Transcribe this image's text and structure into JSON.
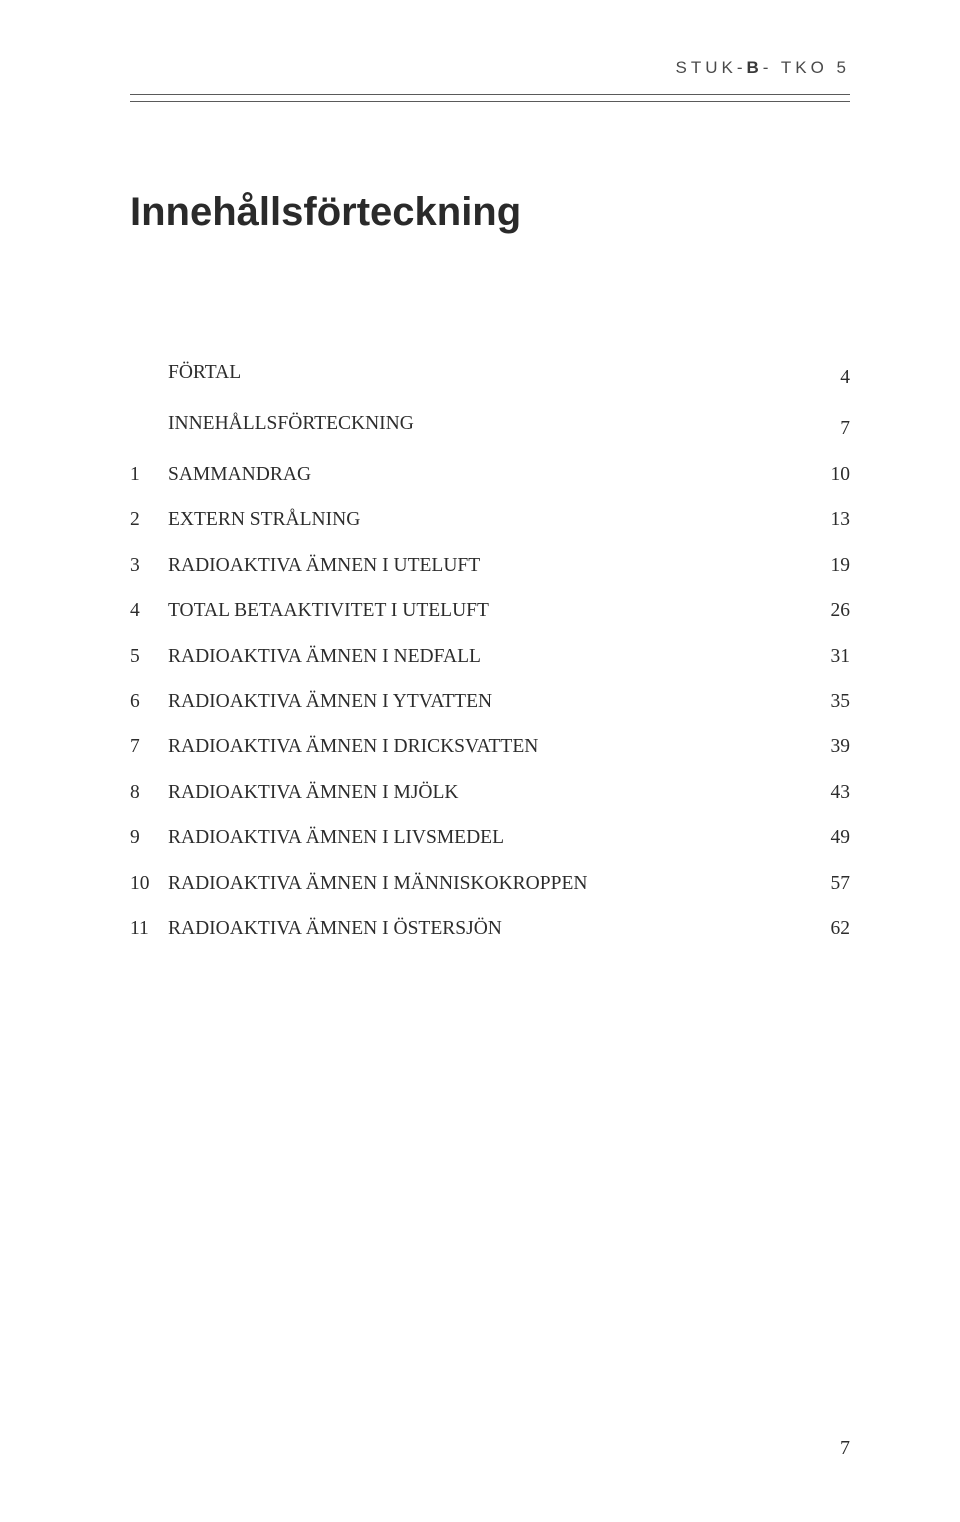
{
  "running_head": {
    "pre": "STUK-",
    "bold": "B",
    "post": "- TKO 5"
  },
  "title": "Innehållsförteckning",
  "toc": [
    {
      "num": "",
      "label": "FÖRTAL",
      "page": "4"
    },
    {
      "num": "",
      "label": "INNEHÅLLSFÖRTECKNING",
      "page": "7"
    },
    {
      "num": "1",
      "label": "SAMMANDRAG",
      "page": "10"
    },
    {
      "num": "2",
      "label": "EXTERN STRÅLNING",
      "page": "13"
    },
    {
      "num": "3",
      "label": "RADIOAKTIVA ÄMNEN I UTELUFT",
      "page": "19"
    },
    {
      "num": "4",
      "label": "TOTAL BETAAKTIVITET I UTELUFT",
      "page": "26"
    },
    {
      "num": "5",
      "label": "RADIOAKTIVA ÄMNEN I NEDFALL",
      "page": "31"
    },
    {
      "num": "6",
      "label": "RADIOAKTIVA ÄMNEN I YTVATTEN",
      "page": "35"
    },
    {
      "num": "7",
      "label": "RADIOAKTIVA ÄMNEN I DRICKSVATTEN",
      "page": "39"
    },
    {
      "num": "8",
      "label": "RADIOAKTIVA ÄMNEN I MJÖLK",
      "page": "43"
    },
    {
      "num": "9",
      "label": "RADIOAKTIVA ÄMNEN I LIVSMEDEL",
      "page": "49"
    },
    {
      "num": "10",
      "label": "RADIOAKTIVA ÄMNEN I MÄNNISKOKROPPEN",
      "page": "57"
    },
    {
      "num": "11",
      "label": "RADIOAKTIVA ÄMNEN I ÖSTERSJÖN",
      "page": "62"
    }
  ],
  "page_number": "7"
}
